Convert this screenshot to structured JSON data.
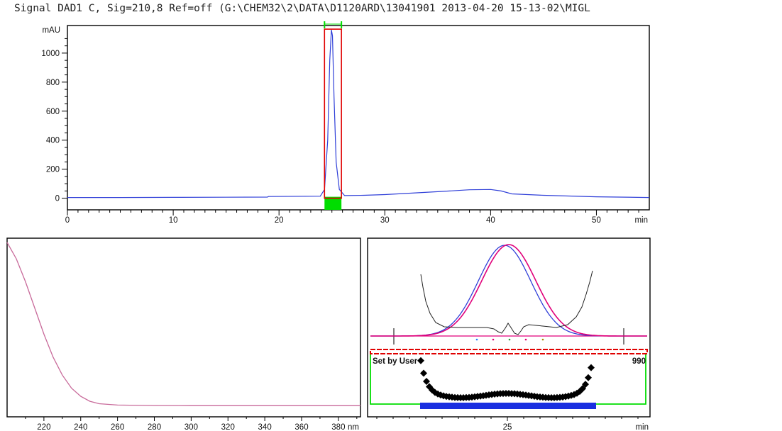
{
  "header": {
    "signal_line": "Signal DAD1 C, Sig=210,8 Ref=off (G:\\CHEM32\\2\\DATA\\D1120ARD\\13041901 2013-04-20 15-13-02\\MIGL"
  },
  "colors": {
    "trace": "#2f3fd8",
    "marker_box": "#e00000",
    "marker_band": "#00dd00",
    "spectrum": "#c86a9a",
    "fit": "#e0007a",
    "purity": "#000000"
  },
  "chart_data": [
    {
      "type": "line",
      "name": "chromatogram",
      "ylabel": "mAU",
      "xunit": "min",
      "xlim": [
        0,
        55
      ],
      "ylim": [
        -80,
        1190
      ],
      "xticks": [
        "0",
        "10",
        "20",
        "30",
        "40",
        "50"
      ],
      "yticks": [
        "0",
        "200",
        "400",
        "600",
        "800",
        "1000"
      ],
      "x": [
        0,
        5,
        10,
        15,
        18.9,
        19.0,
        23.9,
        24.3,
        24.6,
        24.8,
        24.95,
        25.05,
        25.2,
        25.4,
        25.7,
        26.2,
        28,
        30,
        35,
        38,
        40,
        41,
        42,
        45,
        50,
        55
      ],
      "y": [
        5,
        5,
        6,
        7,
        8,
        12,
        14,
        60,
        400,
        950,
        1160,
        1120,
        700,
        250,
        60,
        18,
        20,
        25,
        45,
        58,
        60,
        50,
        30,
        20,
        10,
        5
      ],
      "selection": {
        "x_start": 24.3,
        "x_end": 25.9,
        "y_top": 1165
      }
    },
    {
      "type": "line",
      "name": "uv-spectrum",
      "xunit": "nm",
      "xlim": [
        200,
        392
      ],
      "xticks": [
        "220",
        "240",
        "260",
        "280",
        "300",
        "320",
        "340",
        "360",
        "380"
      ],
      "x": [
        200,
        205,
        210,
        215,
        220,
        225,
        230,
        235,
        240,
        245,
        250,
        260,
        280,
        300,
        340,
        392
      ],
      "y": [
        100,
        90,
        76,
        60,
        44,
        30,
        19,
        11,
        6,
        3,
        1.5,
        0.7,
        0.4,
        0.3,
        0.3,
        0.3
      ]
    },
    {
      "type": "line",
      "name": "peak-purity",
      "xunit": "min",
      "xticks": [
        "25"
      ],
      "annotation_left": "Set by User",
      "annotation_right": "990"
    }
  ]
}
